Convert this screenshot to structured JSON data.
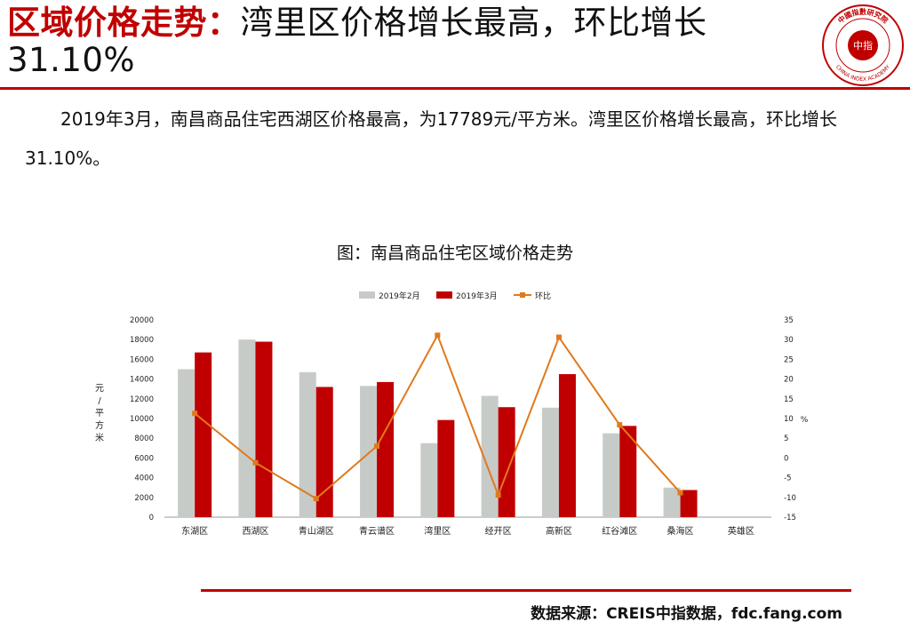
{
  "header": {
    "title_highlight": "区域价格走势：",
    "title_rest": "湾里区价格增长最高，环比增长",
    "title_pct": "31.10%"
  },
  "logo": {
    "top_text": "中國指數研究院",
    "center_text": "中指",
    "bottom_text": "CHINA INDEX ACADEMY"
  },
  "body_text": "2019年3月，南昌商品住宅西湖区价格最高，为17789元/平方米。湾里区价格增长最高，环比增长31.10%。",
  "chart_title": "图：南昌商品住宅区域价格走势",
  "source": "数据来源：CREIS中指数据，fdc.fang.com",
  "colors": {
    "accent": "#c00000",
    "feb_bar": "#c6cbc8",
    "mar_bar": "#c00000",
    "mom_line": "#e0791d"
  },
  "chart_data": {
    "type": "bar",
    "categories": [
      "东湖区",
      "西湖区",
      "青山湖区",
      "青云谱区",
      "湾里区",
      "经开区",
      "高新区",
      "红谷滩区",
      "桑海区",
      "英雄区"
    ],
    "series": [
      {
        "name": "2019年2月",
        "type": "bar",
        "axis": "left",
        "values": [
          15000,
          18000,
          14700,
          13300,
          7500,
          12300,
          11100,
          8500,
          3000,
          null
        ]
      },
      {
        "name": "2019年3月",
        "type": "bar",
        "axis": "left",
        "values": [
          16700,
          17789,
          13200,
          13700,
          9850,
          11150,
          14500,
          9250,
          2750,
          null
        ]
      },
      {
        "name": "环比",
        "type": "line",
        "axis": "right",
        "values": [
          11.3,
          -1.2,
          -10.3,
          3.0,
          31.1,
          -9.4,
          30.6,
          8.4,
          -8.8,
          null
        ]
      }
    ],
    "ylabel": "元/平方米",
    "ylim": [
      0,
      20000
    ],
    "yticks": [
      0,
      2000,
      4000,
      6000,
      8000,
      10000,
      12000,
      14000,
      16000,
      18000,
      20000
    ],
    "y2label": "%",
    "y2lim": [
      -15,
      35
    ],
    "y2ticks": [
      -15,
      -10,
      -5,
      0,
      5,
      10,
      15,
      20,
      25,
      30,
      35
    ],
    "legend_position": "top-center",
    "grid": false
  }
}
